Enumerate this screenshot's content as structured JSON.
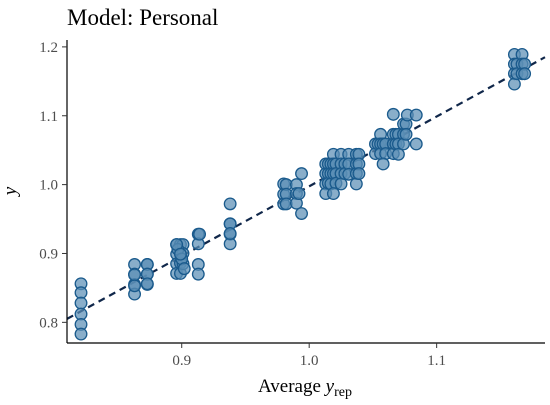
{
  "chart_data": {
    "type": "scatter",
    "title": "Model: Personal",
    "xlabel": {
      "main": "Average ",
      "var": "y",
      "sub": "rep"
    },
    "ylabel": "y",
    "xlim": [
      0.81,
      1.185
    ],
    "ylim": [
      0.77,
      1.21
    ],
    "xticks": [
      0.9,
      1.0,
      1.1
    ],
    "xtick_labels": [
      "0.9",
      "1.0",
      "1.1"
    ],
    "yticks": [
      0.8,
      0.9,
      1.0,
      1.1,
      1.2
    ],
    "ytick_labels": [
      "0.8",
      "0.9",
      "1.0",
      "1.1",
      "1.2"
    ],
    "reference_line": {
      "style": "dashed",
      "x": [
        0.81,
        1.185
      ],
      "y": [
        0.805,
        1.185
      ]
    },
    "marker": {
      "fill": "#5b8fb5",
      "stroke": "#1a5a8c"
    },
    "line_color": "#10274a",
    "grid": false,
    "legend": "none",
    "points": [
      {
        "x": 0.821,
        "y": 0.856
      },
      {
        "x": 0.821,
        "y": 0.843
      },
      {
        "x": 0.821,
        "y": 0.828
      },
      {
        "x": 0.821,
        "y": 0.812
      },
      {
        "x": 0.821,
        "y": 0.797
      },
      {
        "x": 0.821,
        "y": 0.783
      },
      {
        "x": 0.863,
        "y": 0.884
      },
      {
        "x": 0.863,
        "y": 0.87
      },
      {
        "x": 0.863,
        "y": 0.855
      },
      {
        "x": 0.863,
        "y": 0.841
      },
      {
        "x": 0.863,
        "y": 0.869
      },
      {
        "x": 0.863,
        "y": 0.853
      },
      {
        "x": 0.873,
        "y": 0.884
      },
      {
        "x": 0.873,
        "y": 0.87
      },
      {
        "x": 0.873,
        "y": 0.855
      },
      {
        "x": 0.873,
        "y": 0.884
      },
      {
        "x": 0.873,
        "y": 0.87
      },
      {
        "x": 0.873,
        "y": 0.856
      },
      {
        "x": 0.896,
        "y": 0.913
      },
      {
        "x": 0.896,
        "y": 0.899
      },
      {
        "x": 0.896,
        "y": 0.885
      },
      {
        "x": 0.896,
        "y": 0.871
      },
      {
        "x": 0.899,
        "y": 0.913
      },
      {
        "x": 0.899,
        "y": 0.9
      },
      {
        "x": 0.899,
        "y": 0.886
      },
      {
        "x": 0.899,
        "y": 0.871
      },
      {
        "x": 0.901,
        "y": 0.913
      },
      {
        "x": 0.901,
        "y": 0.9
      },
      {
        "x": 0.901,
        "y": 0.885
      },
      {
        "x": 0.897,
        "y": 0.906
      },
      {
        "x": 0.9,
        "y": 0.892
      },
      {
        "x": 0.902,
        "y": 0.878
      },
      {
        "x": 0.896,
        "y": 0.913
      },
      {
        "x": 0.899,
        "y": 0.899
      },
      {
        "x": 0.913,
        "y": 0.928
      },
      {
        "x": 0.913,
        "y": 0.914
      },
      {
        "x": 0.913,
        "y": 0.884
      },
      {
        "x": 0.913,
        "y": 0.87
      },
      {
        "x": 0.914,
        "y": 0.928
      },
      {
        "x": 0.938,
        "y": 0.972
      },
      {
        "x": 0.938,
        "y": 0.943
      },
      {
        "x": 0.938,
        "y": 0.928
      },
      {
        "x": 0.938,
        "y": 0.914
      },
      {
        "x": 0.938,
        "y": 0.943
      },
      {
        "x": 0.938,
        "y": 0.929
      },
      {
        "x": 0.98,
        "y": 1.001
      },
      {
        "x": 0.98,
        "y": 0.986
      },
      {
        "x": 0.98,
        "y": 0.972
      },
      {
        "x": 0.982,
        "y": 1.0
      },
      {
        "x": 0.982,
        "y": 0.986
      },
      {
        "x": 0.982,
        "y": 0.972
      },
      {
        "x": 0.99,
        "y": 1.0
      },
      {
        "x": 0.99,
        "y": 0.987
      },
      {
        "x": 0.99,
        "y": 0.973
      },
      {
        "x": 0.992,
        "y": 0.987
      },
      {
        "x": 0.994,
        "y": 1.016
      },
      {
        "x": 0.994,
        "y": 0.958
      },
      {
        "x": 1.013,
        "y": 1.03
      },
      {
        "x": 1.013,
        "y": 1.016
      },
      {
        "x": 1.013,
        "y": 1.001
      },
      {
        "x": 1.013,
        "y": 0.987
      },
      {
        "x": 1.015,
        "y": 1.03
      },
      {
        "x": 1.015,
        "y": 1.016
      },
      {
        "x": 1.015,
        "y": 1.002
      },
      {
        "x": 1.017,
        "y": 1.03
      },
      {
        "x": 1.017,
        "y": 1.016
      },
      {
        "x": 1.017,
        "y": 1.001
      },
      {
        "x": 1.019,
        "y": 1.044
      },
      {
        "x": 1.019,
        "y": 1.03
      },
      {
        "x": 1.019,
        "y": 1.016
      },
      {
        "x": 1.021,
        "y": 1.03
      },
      {
        "x": 1.021,
        "y": 1.016
      },
      {
        "x": 1.021,
        "y": 1.002
      },
      {
        "x": 1.019,
        "y": 0.987
      },
      {
        "x": 1.025,
        "y": 1.044
      },
      {
        "x": 1.025,
        "y": 1.03
      },
      {
        "x": 1.025,
        "y": 1.016
      },
      {
        "x": 1.025,
        "y": 1.001
      },
      {
        "x": 1.028,
        "y": 1.03
      },
      {
        "x": 1.028,
        "y": 1.016
      },
      {
        "x": 1.031,
        "y": 1.044
      },
      {
        "x": 1.031,
        "y": 1.03
      },
      {
        "x": 1.031,
        "y": 1.015
      },
      {
        "x": 1.037,
        "y": 1.044
      },
      {
        "x": 1.037,
        "y": 1.03
      },
      {
        "x": 1.037,
        "y": 1.016
      },
      {
        "x": 1.037,
        "y": 1.001
      },
      {
        "x": 1.039,
        "y": 1.044
      },
      {
        "x": 1.039,
        "y": 1.03
      },
      {
        "x": 1.039,
        "y": 1.016
      },
      {
        "x": 1.052,
        "y": 1.059
      },
      {
        "x": 1.052,
        "y": 1.045
      },
      {
        "x": 1.054,
        "y": 1.059
      },
      {
        "x": 1.056,
        "y": 1.073
      },
      {
        "x": 1.056,
        "y": 1.059
      },
      {
        "x": 1.056,
        "y": 1.045
      },
      {
        "x": 1.058,
        "y": 1.059
      },
      {
        "x": 1.06,
        "y": 1.059
      },
      {
        "x": 1.06,
        "y": 1.045
      },
      {
        "x": 1.058,
        "y": 1.03
      },
      {
        "x": 1.066,
        "y": 1.102
      },
      {
        "x": 1.066,
        "y": 1.073
      },
      {
        "x": 1.066,
        "y": 1.059
      },
      {
        "x": 1.066,
        "y": 1.045
      },
      {
        "x": 1.068,
        "y": 1.073
      },
      {
        "x": 1.068,
        "y": 1.059
      },
      {
        "x": 1.07,
        "y": 1.073
      },
      {
        "x": 1.07,
        "y": 1.059
      },
      {
        "x": 1.07,
        "y": 1.044
      },
      {
        "x": 1.074,
        "y": 1.088
      },
      {
        "x": 1.074,
        "y": 1.073
      },
      {
        "x": 1.074,
        "y": 1.059
      },
      {
        "x": 1.076,
        "y": 1.088
      },
      {
        "x": 1.076,
        "y": 1.073
      },
      {
        "x": 1.077,
        "y": 1.101
      },
      {
        "x": 1.084,
        "y": 1.101
      },
      {
        "x": 1.084,
        "y": 1.059
      },
      {
        "x": 1.161,
        "y": 1.189
      },
      {
        "x": 1.161,
        "y": 1.175
      },
      {
        "x": 1.161,
        "y": 1.161
      },
      {
        "x": 1.161,
        "y": 1.146
      },
      {
        "x": 1.163,
        "y": 1.175
      },
      {
        "x": 1.163,
        "y": 1.161
      },
      {
        "x": 1.167,
        "y": 1.189
      },
      {
        "x": 1.167,
        "y": 1.175
      },
      {
        "x": 1.167,
        "y": 1.161
      },
      {
        "x": 1.169,
        "y": 1.175
      },
      {
        "x": 1.169,
        "y": 1.161
      }
    ]
  }
}
